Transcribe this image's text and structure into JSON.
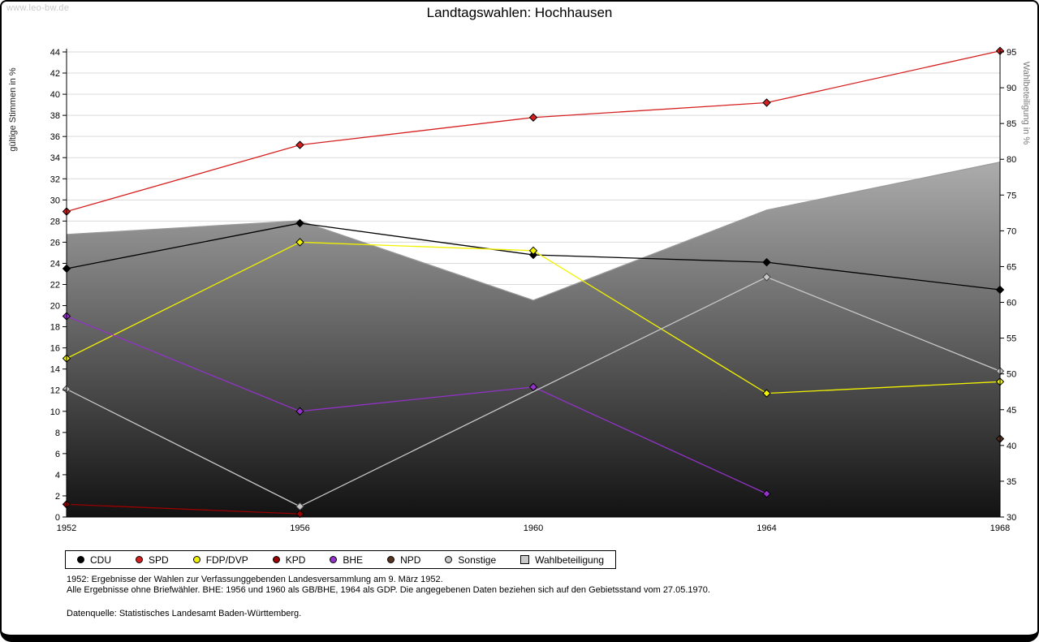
{
  "watermark": "www.leo-bw.de",
  "title": "Landtagswahlen: Hochhausen",
  "footnotes": [
    "1952: Ergebnisse der Wahlen zur Verfassunggebenden Landesversammlung am 9. März 1952.",
    "Alle Ergebnisse ohne Briefwähler. BHE: 1956 und 1960 als GB/BHE, 1964 als GDP. Die angegebenen Daten beziehen sich auf den Gebietsstand vom 27.05.1970.",
    "Datenquelle: Statistisches Landesamt Baden-Württemberg."
  ],
  "chart_data": {
    "type": "line",
    "title": "Landtagswahlen: Hochhausen",
    "x_years": [
      1952,
      1956,
      1960,
      1964,
      1968
    ],
    "left_axis": {
      "label": "gültige Stimmen in %",
      "min": 0,
      "max": 44,
      "ticks": [
        0,
        2,
        4,
        6,
        8,
        10,
        12,
        14,
        16,
        18,
        20,
        22,
        24,
        26,
        28,
        30,
        32,
        34,
        36,
        38,
        40,
        42,
        44
      ]
    },
    "right_axis": {
      "label": "Wahlbeteiligung in %",
      "min": 30,
      "max": 95,
      "ticks": [
        30,
        35,
        40,
        45,
        50,
        55,
        60,
        65,
        70,
        75,
        80,
        85,
        90,
        95
      ]
    },
    "grid": true,
    "grid_color": "#d9d9d9",
    "legend_position": "bottom",
    "area_gradient": [
      "#dcdcdc",
      "#121212"
    ],
    "area_edge_color": "#9a9a9a",
    "series": [
      {
        "name": "CDU",
        "axis": "left",
        "color": "#000000",
        "values": [
          23.5,
          27.8,
          24.8,
          24.1,
          21.5
        ]
      },
      {
        "name": "SPD",
        "axis": "left",
        "color": "#d62020",
        "values": [
          28.9,
          35.2,
          37.8,
          39.2,
          44.1
        ]
      },
      {
        "name": "FDP/DVP",
        "axis": "left",
        "color": "#f2f200",
        "values": [
          15.0,
          26.0,
          25.2,
          11.7,
          12.8
        ]
      },
      {
        "name": "KPD",
        "axis": "left",
        "color": "#990000",
        "values": [
          1.2,
          0.3,
          null,
          null,
          null
        ]
      },
      {
        "name": "BHE",
        "axis": "left",
        "color": "#9232c8",
        "values": [
          19.0,
          10.0,
          12.3,
          2.2,
          null
        ]
      },
      {
        "name": "NPD",
        "axis": "left",
        "color": "#5a3222",
        "values": [
          null,
          null,
          null,
          null,
          7.4
        ]
      },
      {
        "name": "Sonstige",
        "axis": "left",
        "color": "#c8c8c8",
        "marker_stroke": "#444444",
        "values": [
          12.1,
          1.0,
          null,
          22.7,
          13.8
        ]
      },
      {
        "name": "Wahlbeteiligung",
        "axis": "right",
        "type": "area",
        "color": "#c9c9c9",
        "values": [
          69.5,
          71.4,
          60.3,
          72.9,
          79.6
        ]
      }
    ]
  }
}
